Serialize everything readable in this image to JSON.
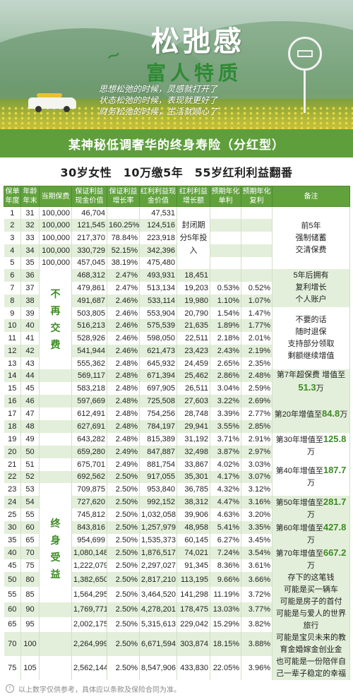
{
  "hero": {
    "title": "松弛感",
    "subtitle": "富人特质",
    "poem": [
      "思想松弛的时候，灵感就打开了",
      "状态松弛的时候，表现就更好了",
      "财务松弛的时候，生活就顺心了"
    ]
  },
  "product_title": "某神秘低调奢华的终身寿险（分红型）",
  "plan_summary": "30岁女性　10万缴5年　55岁红利利益翻番",
  "table": {
    "headers": [
      "保单年度",
      "年龄年末",
      "当期保费",
      "保证利益现金价值",
      "保证利益增长率",
      "红利利益现金价值",
      "红利利益增长额",
      "预期年化单利",
      "预期年化复利",
      "备注"
    ],
    "rows": [
      [
        "1",
        "31",
        "100,000",
        "46,704",
        "",
        "47,531",
        "",
        "",
        "",
        ""
      ],
      [
        "2",
        "32",
        "100,000",
        "121,545",
        "160.25%",
        "124,516",
        "",
        "",
        "",
        ""
      ],
      [
        "3",
        "33",
        "100,000",
        "217,370",
        "78.84%",
        "223,918",
        "",
        "",
        "",
        ""
      ],
      [
        "4",
        "34",
        "100,000",
        "330,729",
        "52.15%",
        "342,396",
        "",
        "",
        "",
        ""
      ],
      [
        "5",
        "35",
        "100,000",
        "457,045",
        "38.19%",
        "475,480",
        "",
        "",
        "",
        ""
      ],
      [
        "6",
        "36",
        "",
        "468,312",
        "2.47%",
        "493,931",
        "18,451",
        "",
        "",
        ""
      ],
      [
        "7",
        "37",
        "",
        "479,861",
        "2.47%",
        "513,134",
        "19,203",
        "0.53%",
        "0.52%",
        ""
      ],
      [
        "8",
        "38",
        "",
        "491,687",
        "2.46%",
        "533,114",
        "19,980",
        "1.10%",
        "1.07%",
        ""
      ],
      [
        "9",
        "39",
        "",
        "503,805",
        "2.46%",
        "553,904",
        "20,790",
        "1.54%",
        "1.47%",
        ""
      ],
      [
        "10",
        "40",
        "",
        "516,213",
        "2.46%",
        "575,539",
        "21,635",
        "1.89%",
        "1.77%",
        ""
      ],
      [
        "11",
        "41",
        "",
        "528,926",
        "2.46%",
        "598,050",
        "22,511",
        "2.18%",
        "2.01%",
        ""
      ],
      [
        "12",
        "42",
        "",
        "541,944",
        "2.46%",
        "621,473",
        "23,423",
        "2.43%",
        "2.19%",
        ""
      ],
      [
        "13",
        "43",
        "",
        "555,362",
        "2.48%",
        "645,932",
        "24,459",
        "2.65%",
        "2.35%",
        ""
      ],
      [
        "14",
        "44",
        "",
        "569,117",
        "2.48%",
        "671,394",
        "25,462",
        "2.86%",
        "2.48%",
        ""
      ],
      [
        "15",
        "45",
        "",
        "583,218",
        "2.48%",
        "697,905",
        "26,511",
        "3.04%",
        "2.59%",
        ""
      ],
      [
        "16",
        "46",
        "",
        "597,669",
        "2.48%",
        "725,508",
        "27,603",
        "3.22%",
        "2.69%",
        ""
      ],
      [
        "17",
        "47",
        "",
        "612,491",
        "2.48%",
        "754,256",
        "28,748",
        "3.39%",
        "2.77%",
        ""
      ],
      [
        "18",
        "48",
        "",
        "627,691",
        "2.48%",
        "784,197",
        "29,941",
        "3.55%",
        "2.85%",
        ""
      ],
      [
        "19",
        "49",
        "",
        "643,282",
        "2.48%",
        "815,389",
        "31,192",
        "3.71%",
        "2.91%",
        ""
      ],
      [
        "20",
        "50",
        "",
        "659,280",
        "2.49%",
        "847,887",
        "32,498",
        "3.87%",
        "2.97%",
        ""
      ],
      [
        "21",
        "51",
        "",
        "675,701",
        "2.49%",
        "881,754",
        "33,867",
        "4.02%",
        "3.03%",
        ""
      ],
      [
        "22",
        "52",
        "",
        "692,562",
        "2.50%",
        "917,055",
        "35,301",
        "4.17%",
        "3.07%",
        ""
      ],
      [
        "23",
        "53",
        "",
        "709,875",
        "2.50%",
        "953,840",
        "36,785",
        "4.32%",
        "3.12%",
        ""
      ],
      [
        "24",
        "54",
        "",
        "727,620",
        "2.50%",
        "992,152",
        "38,312",
        "4.47%",
        "3.16%",
        ""
      ],
      [
        "25",
        "55",
        "",
        "745,812",
        "2.50%",
        "1,032,058",
        "39,906",
        "4.63%",
        "3.20%",
        ""
      ],
      [
        "30",
        "60",
        "",
        "843,816",
        "2.50%",
        "1,257,979",
        "48,958",
        "5.41%",
        "3.35%",
        ""
      ],
      [
        "35",
        "65",
        "",
        "954,699",
        "2.50%",
        "1,535,373",
        "60,145",
        "6.27%",
        "3.45%",
        ""
      ],
      [
        "40",
        "70",
        "",
        "1,080,148",
        "2.50%",
        "1,876,517",
        "74,021",
        "7.24%",
        "3.54%",
        ""
      ],
      [
        "45",
        "75",
        "",
        "1,222,079",
        "2.50%",
        "2,297,027",
        "91,345",
        "8.36%",
        "3.61%",
        ""
      ],
      [
        "50",
        "80",
        "",
        "1,382,650",
        "2.50%",
        "2,817,210",
        "113,195",
        "9.66%",
        "3.66%",
        ""
      ],
      [
        "55",
        "85",
        "",
        "1,564,295",
        "2.50%",
        "3,464,520",
        "141,298",
        "11.19%",
        "3.72%",
        ""
      ],
      [
        "60",
        "90",
        "",
        "1,769,771",
        "2.50%",
        "4,278,201",
        "178,475",
        "13.03%",
        "3.77%",
        ""
      ],
      [
        "65",
        "95",
        "",
        "2,002,175",
        "2.50%",
        "5,315,613",
        "229,042",
        "15.29%",
        "3.82%",
        ""
      ],
      [
        "70",
        "100",
        "",
        "2,264,999",
        "2.50%",
        "6,671,594",
        "303,874",
        "18.15%",
        "3.88%",
        ""
      ],
      [
        "75",
        "105",
        "",
        "2,562,144",
        "2.50%",
        "8,547,906",
        "433,830",
        "22.05%",
        "3.96%",
        ""
      ]
    ],
    "closed_period": "封闭期\n分5年投入",
    "no_premium_label": "不再交费",
    "lifetime_label": "终身受益",
    "notes": {
      "n1": "前5年\n强制储蓄\n交清保费",
      "n2": "5年后拥有\n复利增长\n个人账户",
      "n3": "不要的话\n随时退保\n支持部分领取\n剩额继续增值",
      "n4_a": "第7年超保费\n增值至",
      "n4_b": "51.3",
      "n4_c": "万",
      "n5_a": "第20年增值至",
      "n5_b": "84.8",
      "n5_c": "万",
      "n6_a": "第30年增值至",
      "n6_b": "125.8",
      "n6_c": "万",
      "n7_a": "第40年增值至",
      "n7_b": "187.7",
      "n7_c": "万",
      "n8_a": "第50年增值至",
      "n8_b": "281.7",
      "n8_c": "万",
      "n9_a": "第60年增值至",
      "n9_b": "427.8",
      "n9_c": "万",
      "n10_a": "第70年增值至",
      "n10_b": "667.2",
      "n10_c": "万",
      "n11": "存下的这笔钱\n可能是买一辆车\n可能是房子的首付\n可能是与爱人的世界\n旅行",
      "n12": "可能是宝贝未来的教\n育金婚嫁金创业金\n也可能是一份陪伴自\n己一辈子稳定的幸福"
    }
  },
  "footer": "以上数字仅供参考，具体应以条款及保险合同为准。",
  "colors": {
    "brand_green": "#5e9f3c",
    "header_green": "#61a23d",
    "stripe": "#e3efda",
    "highlight": "#3e8b25"
  }
}
